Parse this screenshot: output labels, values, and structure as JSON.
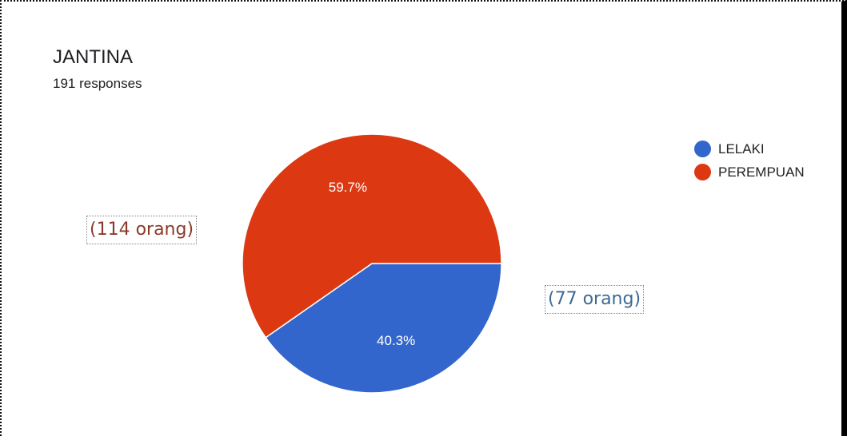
{
  "header": {
    "title": "JANTINA",
    "subtitle": "191 responses"
  },
  "callouts": {
    "perempuan_count": "(114 orang)",
    "lelaki_count": "(77 orang)"
  },
  "colors": {
    "lelaki": "#3366cc",
    "perempuan": "#dc3912"
  },
  "chart_data": {
    "type": "pie",
    "title": "JANTINA",
    "subtitle": "191 responses",
    "legend_position": "right",
    "slices": [
      {
        "label": "LELAKI",
        "value": 40.3,
        "display": "40.3%",
        "count": 77,
        "color": "#3366cc"
      },
      {
        "label": "PEREMPUAN",
        "value": 59.7,
        "display": "59.7%",
        "count": 114,
        "color": "#dc3912"
      }
    ]
  }
}
